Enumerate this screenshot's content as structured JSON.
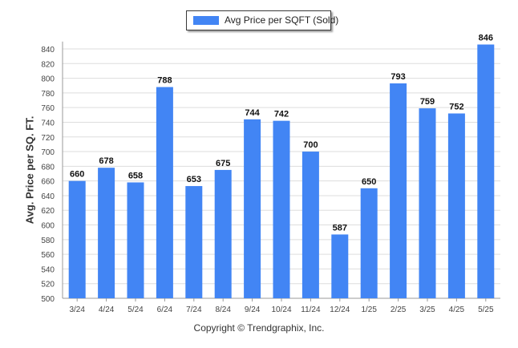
{
  "legend": {
    "label": "Avg Price per SQFT (Sold)",
    "color": "#4285f4"
  },
  "footer": {
    "copyright": "Copyright © Trendgraphix, Inc."
  },
  "chart_data": {
    "type": "bar",
    "title": "",
    "xlabel": "",
    "ylabel": "Avg. Price per SQ. FT.",
    "categories": [
      "3/24",
      "4/24",
      "5/24",
      "6/24",
      "7/24",
      "8/24",
      "9/24",
      "10/24",
      "11/24",
      "12/24",
      "1/25",
      "2/25",
      "3/25",
      "4/25",
      "5/25"
    ],
    "series": [
      {
        "name": "Avg Price per SQFT (Sold)",
        "color": "#4285f4",
        "values": [
          660,
          678,
          658,
          788,
          653,
          675,
          744,
          742,
          700,
          587,
          650,
          793,
          759,
          752,
          846
        ]
      }
    ],
    "ylim": [
      500,
      850
    ],
    "yticks": [
      500,
      520,
      540,
      560,
      580,
      600,
      620,
      640,
      660,
      680,
      700,
      720,
      740,
      760,
      780,
      800,
      820,
      840
    ],
    "grid": true,
    "legend_position": "top-center",
    "data_labels": true
  }
}
